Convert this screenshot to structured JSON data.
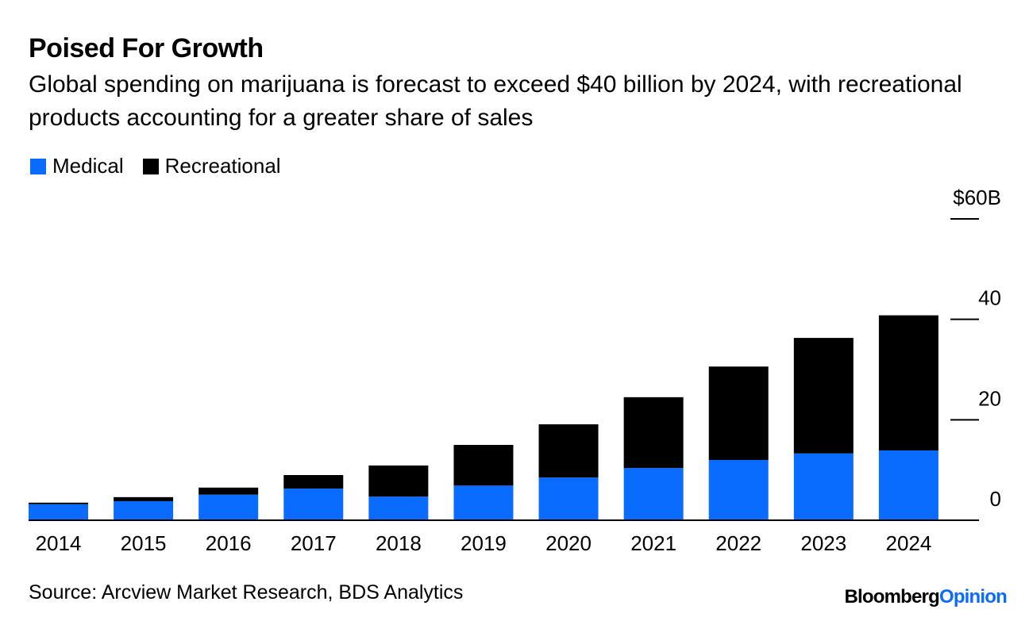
{
  "chart_data": {
    "type": "stacked_bar",
    "title": "Poised For Growth",
    "subtitle": "Global spending on marijuana is forecast to exceed $40 billion by 2024, with recreational products accounting for a greater share of sales",
    "categories": [
      "2014",
      "2015",
      "2016",
      "2017",
      "2018",
      "2019",
      "2020",
      "2021",
      "2022",
      "2023",
      "2024"
    ],
    "series": [
      {
        "name": "Medical",
        "color": "#0a6cff",
        "values": [
          3.2,
          3.8,
          5.1,
          6.3,
          4.7,
          6.9,
          8.5,
          10.4,
          12.0,
          13.3,
          13.9
        ]
      },
      {
        "name": "Recreational",
        "color": "#000000",
        "values": [
          0.3,
          0.8,
          1.4,
          2.7,
          6.2,
          8.1,
          10.6,
          14.1,
          18.6,
          23.0,
          26.9
        ]
      }
    ],
    "ylim": [
      0,
      60
    ],
    "yticks": [
      0,
      20,
      40,
      {
        "value": 60,
        "label": "$60B"
      }
    ],
    "source": "Source: Arcview Market Research, BDS Analytics",
    "logo": {
      "brand": "Bloomberg",
      "section": "Opinion"
    }
  }
}
